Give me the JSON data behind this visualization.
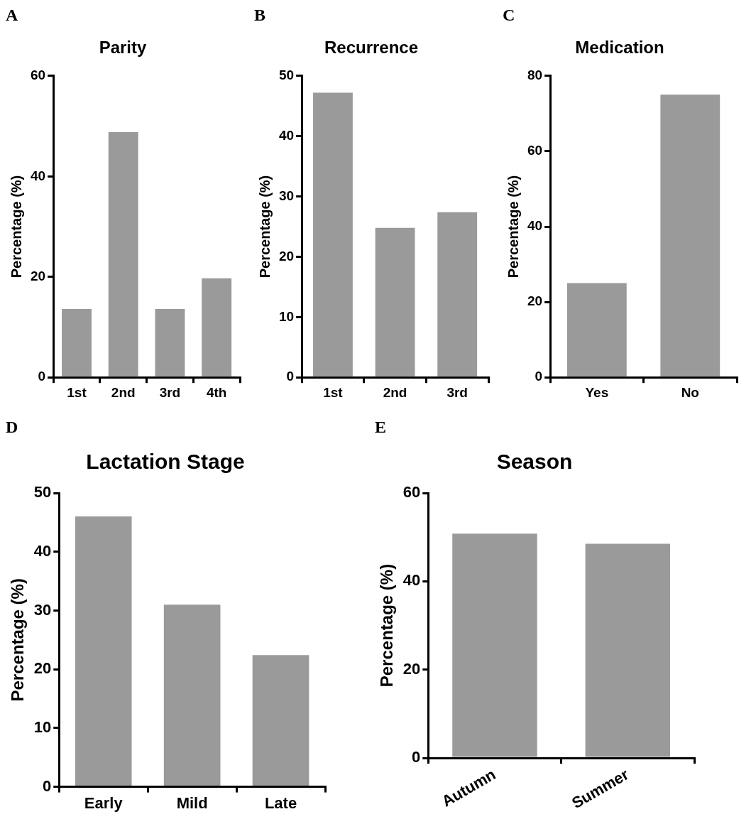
{
  "chart_data": [
    {
      "type": "bar",
      "title": "Parity",
      "ylabel": "Percentage (%)",
      "categories": [
        "1st",
        "2nd",
        "3rd",
        "4th"
      ],
      "values": [
        13.6,
        48.8,
        13.6,
        19.7
      ],
      "color": "#9a9a9a",
      "ylim": [
        0,
        60
      ],
      "yticks": [
        0,
        20,
        40,
        60
      ],
      "annotations": [
        "A"
      ]
    },
    {
      "type": "bar",
      "title": "Recurrence",
      "ylabel": "Percentage (%)",
      "categories": [
        "1st",
        "2nd",
        "3rd"
      ],
      "values": [
        47.2,
        24.8,
        27.4
      ],
      "color": "#9a9a9a",
      "ylim": [
        0,
        50
      ],
      "yticks": [
        0,
        10,
        20,
        30,
        40,
        50
      ],
      "annotations": [
        "B"
      ]
    },
    {
      "type": "bar",
      "title": "Medication",
      "ylabel": "Percentage (%)",
      "categories": [
        "Yes",
        "No"
      ],
      "values": [
        25,
        75
      ],
      "color": "#9a9a9a",
      "ylim": [
        0,
        80
      ],
      "yticks": [
        0,
        20,
        40,
        60,
        80
      ],
      "annotations": [
        "C"
      ]
    },
    {
      "type": "bar",
      "title": "Lactation Stage",
      "ylabel": "Percentage (%)",
      "categories": [
        "Early",
        "Mild",
        "Late"
      ],
      "values": [
        46,
        31,
        22.4
      ],
      "color": "#9a9a9a",
      "ylim": [
        0,
        50
      ],
      "yticks": [
        0,
        10,
        20,
        30,
        40,
        50
      ],
      "annotations": [
        "D"
      ]
    },
    {
      "type": "bar",
      "title": "Season",
      "ylabel": "Percentage (%)",
      "categories": [
        "Autumn",
        "Summer"
      ],
      "values": [
        50.8,
        48.5
      ],
      "color": "#9a9a9a",
      "ylim": [
        0,
        60
      ],
      "yticks": [
        0,
        20,
        40,
        60
      ],
      "annotations": [
        "E"
      ]
    }
  ]
}
